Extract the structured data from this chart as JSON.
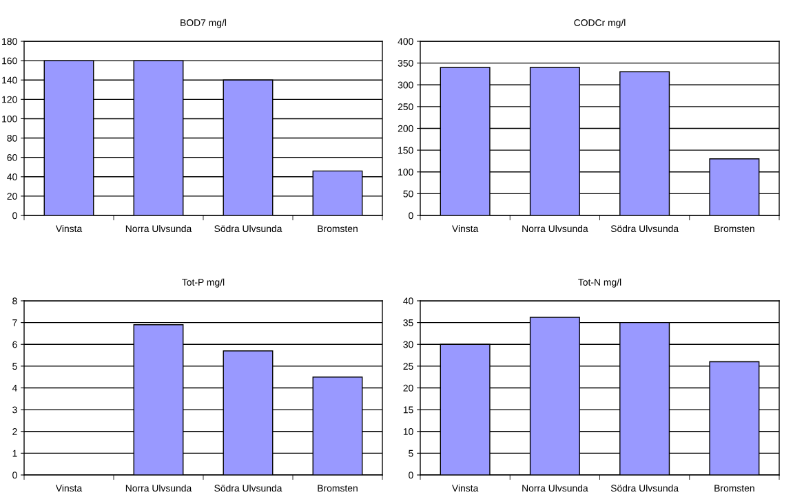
{
  "chart_data": [
    {
      "type": "bar",
      "title": "BOD7 mg/l",
      "categories": [
        "Vinsta",
        "Norra Ulvsunda",
        "Södra Ulvsunda",
        "Bromsten"
      ],
      "values": [
        160,
        160,
        140,
        46
      ],
      "color": "#9999ff",
      "ylim": [
        0,
        180
      ],
      "yticks": [
        0,
        20,
        40,
        60,
        80,
        100,
        120,
        140,
        160,
        180
      ],
      "grid": "y",
      "legend": false
    },
    {
      "type": "bar",
      "title": "CODCr mg/l",
      "categories": [
        "Vinsta",
        "Norra Ulvsunda",
        "Södra Ulvsunda",
        "Bromsten"
      ],
      "values": [
        340,
        340,
        330,
        130
      ],
      "color": "#9999ff",
      "ylim": [
        0,
        400
      ],
      "yticks": [
        0,
        50,
        100,
        150,
        200,
        250,
        300,
        350,
        400
      ],
      "grid": "y",
      "legend": false
    },
    {
      "type": "bar",
      "title": "Tot-P mg/l",
      "categories": [
        "Vinsta",
        "Norra Ulvsunda",
        "Södra Ulvsunda",
        "Bromsten"
      ],
      "values": [
        null,
        6.9,
        5.7,
        4.5
      ],
      "color": "#9999ff",
      "ylim": [
        0,
        8
      ],
      "yticks": [
        0,
        1,
        2,
        3,
        4,
        5,
        6,
        7,
        8
      ],
      "grid": "y",
      "legend": false
    },
    {
      "type": "bar",
      "title": "Tot-N mg/l",
      "categories": [
        "Vinsta",
        "Norra Ulvsunda",
        "Södra Ulvsunda",
        "Bromsten"
      ],
      "values": [
        30,
        36.2,
        35,
        26
      ],
      "color": "#9999ff",
      "ylim": [
        0,
        40
      ],
      "yticks": [
        0,
        5,
        10,
        15,
        20,
        25,
        30,
        35,
        40
      ],
      "grid": "y",
      "legend": false
    }
  ]
}
